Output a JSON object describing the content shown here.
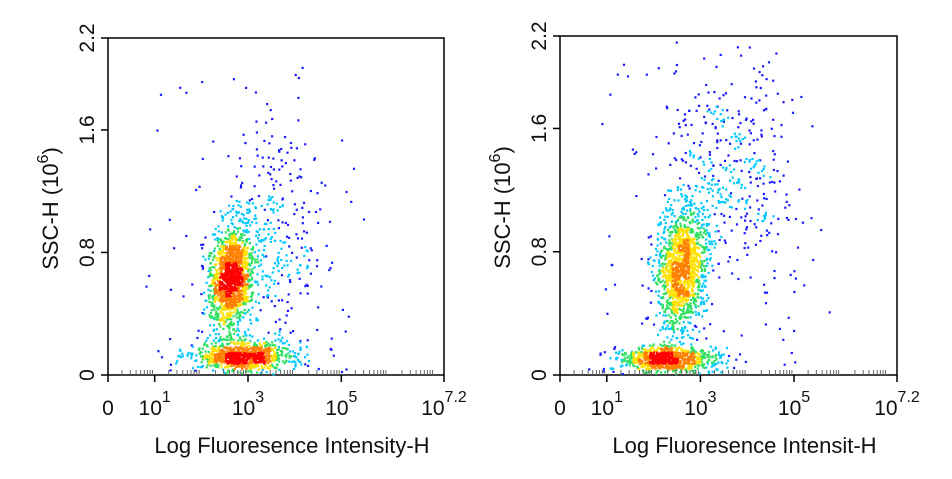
{
  "chart_data": [
    {
      "type": "scatter",
      "subtype": "flow-cytometry-density-dot-plot",
      "title": "",
      "xlabel": "Log Fluoresence Intensity-H",
      "ylabel": "SSC-H  (10^6)",
      "ylabel_base": "SSC-H  (10",
      "ylabel_exp": "6",
      "ylabel_tail": ")",
      "x_scale": "log",
      "xlim_exp": [
        0,
        7.2
      ],
      "ylim": [
        0,
        2.2
      ],
      "x_ticks": [
        {
          "base": "0",
          "exp": "",
          "value": 0
        },
        {
          "base": "10",
          "exp": "1",
          "value": 1
        },
        {
          "base": "10",
          "exp": "3",
          "value": 3
        },
        {
          "base": "10",
          "exp": "5",
          "value": 5
        },
        {
          "base": "10",
          "exp": "7.2",
          "value": 7.2
        }
      ],
      "y_ticks": [
        {
          "label": "0",
          "value": 0
        },
        {
          "label": "0.8",
          "value": 0.8
        },
        {
          "label": "1.6",
          "value": 1.6
        },
        {
          "label": "2.2",
          "value": 2.2
        }
      ],
      "colormap": [
        "#1a1aff",
        "#00c8ff",
        "#30e060",
        "#ffe000",
        "#ff8000",
        "#ff0000"
      ],
      "grid": false,
      "legend": "none",
      "clusters": [
        {
          "x_log": 2.65,
          "y": 0.63,
          "n": 1400,
          "density": "high"
        },
        {
          "x_log": 2.9,
          "y": 0.12,
          "n": 900,
          "density": "high"
        },
        {
          "x_log": 3.6,
          "y": 0.95,
          "n": 250,
          "density": "low"
        }
      ]
    },
    {
      "type": "scatter",
      "subtype": "flow-cytometry-density-dot-plot",
      "title": "",
      "xlabel": "Log Fluoresence Intensit-H",
      "ylabel": "SSC-H  (10^6)",
      "ylabel_base": "SSC-H  (10",
      "ylabel_exp": "6",
      "ylabel_tail": ")",
      "x_scale": "log",
      "xlim_exp": [
        0,
        7.2
      ],
      "ylim": [
        0,
        2.2
      ],
      "x_ticks": [
        {
          "base": "0",
          "exp": "",
          "value": 0
        },
        {
          "base": "10",
          "exp": "1",
          "value": 1
        },
        {
          "base": "10",
          "exp": "3",
          "value": 3
        },
        {
          "base": "10",
          "exp": "5",
          "value": 5
        },
        {
          "base": "10",
          "exp": "7.2",
          "value": 7.2
        }
      ],
      "y_ticks": [
        {
          "label": "0",
          "value": 0
        },
        {
          "label": "0.8",
          "value": 0.8
        },
        {
          "label": "1.6",
          "value": 1.6
        },
        {
          "label": "2.2",
          "value": 2.2
        }
      ],
      "colormap": [
        "#1a1aff",
        "#00c8ff",
        "#30e060",
        "#ffe000",
        "#ff8000",
        "#ff0000"
      ],
      "grid": false,
      "legend": "none",
      "clusters": [
        {
          "x_log": 2.6,
          "y": 0.68,
          "n": 1300,
          "density": "high"
        },
        {
          "x_log": 2.3,
          "y": 0.1,
          "n": 900,
          "density": "high"
        },
        {
          "x_log": 3.6,
          "y": 1.3,
          "n": 380,
          "density": "low"
        }
      ]
    }
  ]
}
